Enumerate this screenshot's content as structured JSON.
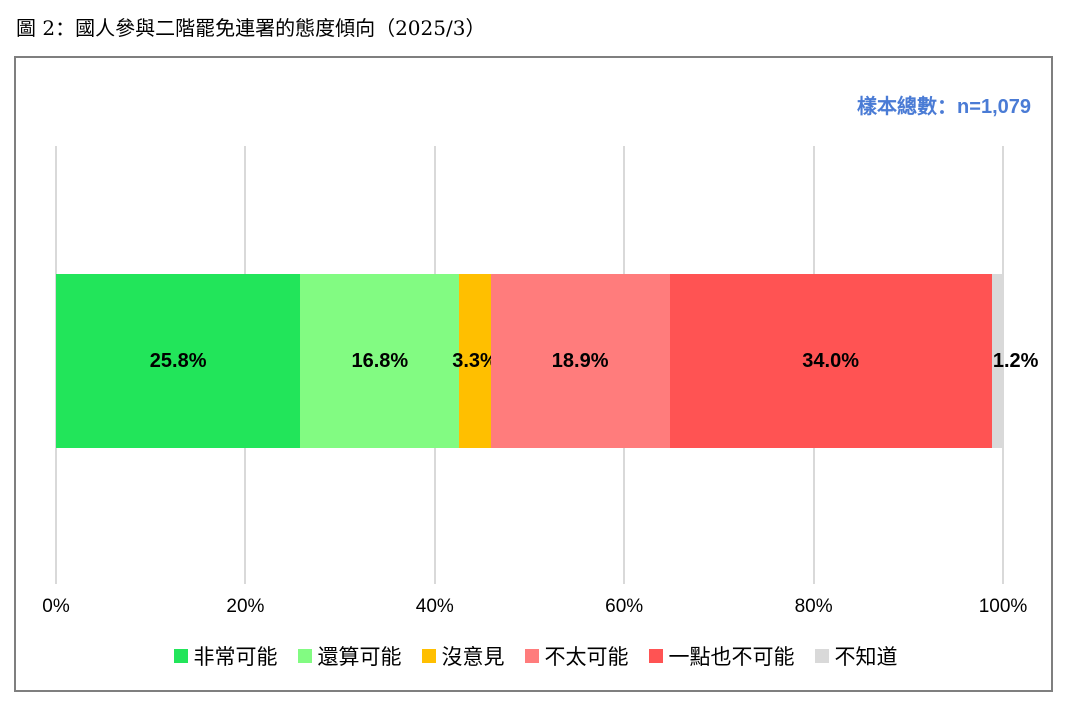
{
  "figure_title": "圖 2：國人參與二階罷免連署的態度傾向（2025/3）",
  "sample_label": "樣本總數：n=1,079",
  "chart_data": {
    "type": "bar",
    "orientation": "horizontal-stacked",
    "xlim": [
      0,
      100
    ],
    "ticks": [
      "0%",
      "20%",
      "40%",
      "60%",
      "80%",
      "100%"
    ],
    "tick_values": [
      0,
      20,
      40,
      60,
      80,
      100
    ],
    "grid": true,
    "legend_position": "bottom",
    "series": [
      {
        "name": "非常可能",
        "value": 25.8,
        "label": "25.8%",
        "color": "#22e55a"
      },
      {
        "name": "還算可能",
        "value": 16.8,
        "label": "16.8%",
        "color": "#82fb82"
      },
      {
        "name": "沒意見",
        "value": 3.3,
        "label": "3.3%",
        "color": "#ffbf00"
      },
      {
        "name": "不太可能",
        "value": 18.9,
        "label": "18.9%",
        "color": "#ff7c7c"
      },
      {
        "name": "一點也不可能",
        "value": 34.0,
        "label": "34.0%",
        "color": "#ff5353"
      },
      {
        "name": "不知道",
        "value": 1.2,
        "label": "1.2%",
        "color": "#d9d9d9"
      }
    ]
  }
}
